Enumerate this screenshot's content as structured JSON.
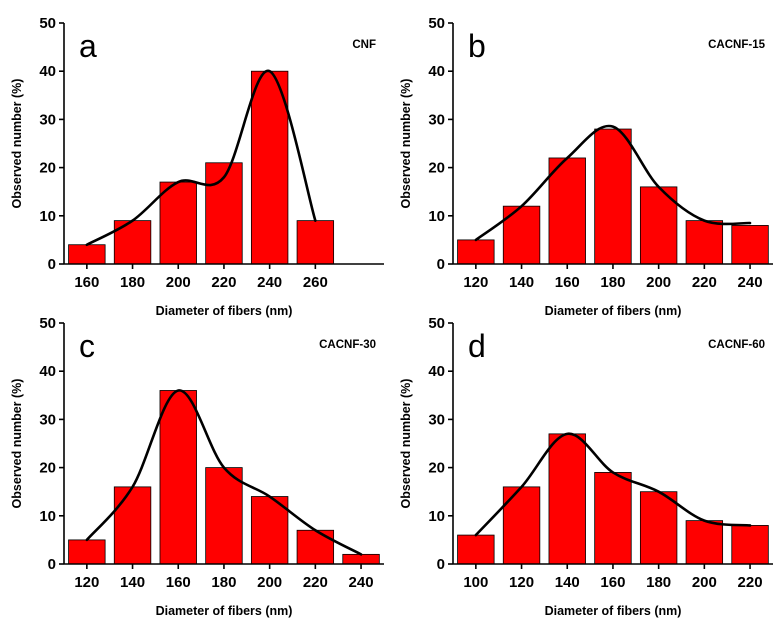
{
  "chart_data": [
    {
      "type": "bar",
      "panel_letter": "a",
      "title": "CNF",
      "xlabel": "Diameter of fibers (nm)",
      "ylabel": "Observed number (%)",
      "categories": [
        "160",
        "180",
        "200",
        "220",
        "240",
        "260"
      ],
      "values": [
        4,
        9,
        17,
        21,
        40,
        9
      ],
      "curve": [
        4,
        9,
        17,
        18,
        40,
        9
      ],
      "ylim": [
        0,
        50
      ],
      "yticks": [
        0,
        10,
        20,
        30,
        40,
        50
      ],
      "bar_color": "#ff0000",
      "curve_color": "#000000"
    },
    {
      "type": "bar",
      "panel_letter": "b",
      "title": "CACNF-15",
      "xlabel": "Diameter of fibers (nm)",
      "ylabel": "Observed number (%)",
      "categories": [
        "120",
        "140",
        "160",
        "180",
        "200",
        "220",
        "240"
      ],
      "values": [
        5,
        12,
        22,
        28,
        16,
        9,
        8
      ],
      "curve": [
        5,
        12,
        22,
        28.5,
        16,
        9,
        8.5
      ],
      "ylim": [
        0,
        50
      ],
      "yticks": [
        0,
        10,
        20,
        30,
        40,
        50
      ],
      "bar_color": "#ff0000",
      "curve_color": "#000000"
    },
    {
      "type": "bar",
      "panel_letter": "c",
      "title": "CACNF-30",
      "xlabel": "Diameter of fibers (nm)",
      "ylabel": "Observed number (%)",
      "categories": [
        "120",
        "140",
        "160",
        "180",
        "200",
        "220",
        "240"
      ],
      "values": [
        5,
        16,
        36,
        20,
        14,
        7,
        2
      ],
      "curve": [
        5,
        16,
        36,
        20,
        14,
        7,
        2
      ],
      "ylim": [
        0,
        50
      ],
      "yticks": [
        0,
        10,
        20,
        30,
        40,
        50
      ],
      "bar_color": "#ff0000",
      "curve_color": "#000000"
    },
    {
      "type": "bar",
      "panel_letter": "d",
      "title": "CACNF-60",
      "xlabel": "Diameter of fibers (nm)",
      "ylabel": "Observed number (%)",
      "categories": [
        "100",
        "120",
        "140",
        "160",
        "180",
        "200",
        "220"
      ],
      "values": [
        6,
        16,
        27,
        19,
        15,
        9,
        8
      ],
      "curve": [
        6,
        16,
        27,
        19,
        15,
        9,
        8
      ],
      "ylim": [
        0,
        50
      ],
      "yticks": [
        0,
        10,
        20,
        30,
        40,
        50
      ],
      "bar_color": "#ff0000",
      "curve_color": "#000000"
    }
  ]
}
